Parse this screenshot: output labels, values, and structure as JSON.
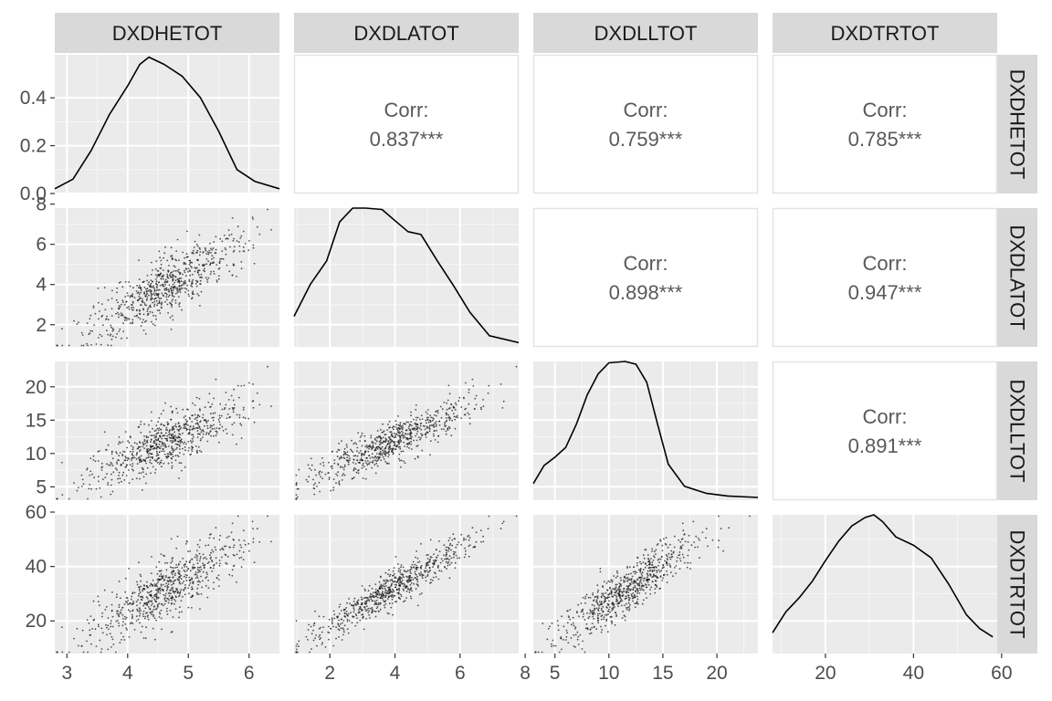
{
  "chart_data": {
    "type": "scatter-matrix",
    "variables": [
      "DXDHETOT",
      "DXDLATOT",
      "DXDLLTOT",
      "DXDTRTOT"
    ],
    "corr_label": "Corr:",
    "correlations": [
      {
        "row": "DXDHETOT",
        "col": "DXDLATOT",
        "text": "0.837***",
        "value": 0.837
      },
      {
        "row": "DXDHETOT",
        "col": "DXDLLTOT",
        "text": "0.759***",
        "value": 0.759
      },
      {
        "row": "DXDHETOT",
        "col": "DXDTRTOT",
        "text": "0.785***",
        "value": 0.785
      },
      {
        "row": "DXDLATOT",
        "col": "DXDLLTOT",
        "text": "0.898***",
        "value": 0.898
      },
      {
        "row": "DXDLATOT",
        "col": "DXDTRTOT",
        "text": "0.947***",
        "value": 0.947
      },
      {
        "row": "DXDLLTOT",
        "col": "DXDTRTOT",
        "text": "0.891***",
        "value": 0.891
      }
    ],
    "ranges": {
      "DXDHETOT": [
        2.8,
        6.5
      ],
      "DXDLATOT": [
        0.9,
        7.8
      ],
      "DXDLLTOT": [
        3.0,
        23.8
      ],
      "DXDTRTOT": [
        8.0,
        59.0
      ]
    },
    "x_ticks": {
      "DXDHETOT": [
        3,
        4,
        5,
        6
      ],
      "DXDLATOT": [
        2,
        4,
        6,
        8
      ],
      "DXDLLTOT": [
        5,
        10,
        15,
        20
      ],
      "DXDTRTOT": [
        20,
        40,
        60
      ]
    },
    "y_ticks": {
      "DXDHETOT": [
        "0.0",
        "0.2",
        "0.4"
      ],
      "DXDLATOT": [
        "2",
        "4",
        "6",
        "8"
      ],
      "DXDLLTOT": [
        "5",
        "10",
        "15",
        "20"
      ],
      "DXDTRTOT": [
        "20",
        "40",
        "60"
      ]
    },
    "density_row1_axis": {
      "range": [
        0,
        0.58
      ],
      "ticks": [
        0.0,
        0.2,
        0.4
      ]
    },
    "density_curves": {
      "DXDHETOT": [
        [
          2.8,
          0.02
        ],
        [
          3.1,
          0.06
        ],
        [
          3.4,
          0.18
        ],
        [
          3.7,
          0.33
        ],
        [
          4.0,
          0.45
        ],
        [
          4.2,
          0.54
        ],
        [
          4.35,
          0.57
        ],
        [
          4.6,
          0.54
        ],
        [
          4.9,
          0.49
        ],
        [
          5.2,
          0.4
        ],
        [
          5.5,
          0.26
        ],
        [
          5.8,
          0.1
        ],
        [
          6.1,
          0.05
        ],
        [
          6.5,
          0.02
        ]
      ],
      "DXDLATOT": [
        [
          0.9,
          0.22
        ],
        [
          1.4,
          0.45
        ],
        [
          1.9,
          0.62
        ],
        [
          2.3,
          0.9
        ],
        [
          2.7,
          1.0
        ],
        [
          3.1,
          1.0
        ],
        [
          3.6,
          0.99
        ],
        [
          4.0,
          0.91
        ],
        [
          4.4,
          0.83
        ],
        [
          4.8,
          0.81
        ],
        [
          5.3,
          0.62
        ],
        [
          5.8,
          0.44
        ],
        [
          6.3,
          0.25
        ],
        [
          6.9,
          0.08
        ],
        [
          7.8,
          0.03
        ]
      ],
      "DXDLLTOT": [
        [
          3.0,
          0.12
        ],
        [
          4.0,
          0.25
        ],
        [
          5.0,
          0.31
        ],
        [
          6.0,
          0.38
        ],
        [
          7.0,
          0.55
        ],
        [
          8.0,
          0.76
        ],
        [
          9.0,
          0.91
        ],
        [
          10.0,
          0.99
        ],
        [
          11.5,
          1.0
        ],
        [
          12.5,
          0.98
        ],
        [
          13.5,
          0.85
        ],
        [
          14.5,
          0.55
        ],
        [
          15.5,
          0.26
        ],
        [
          17.0,
          0.1
        ],
        [
          19.0,
          0.05
        ],
        [
          21.0,
          0.03
        ],
        [
          23.8,
          0.02
        ]
      ],
      "DXDTRTOT": [
        [
          8.0,
          0.15
        ],
        [
          11.0,
          0.3
        ],
        [
          14.0,
          0.4
        ],
        [
          17.0,
          0.52
        ],
        [
          20.0,
          0.67
        ],
        [
          23.0,
          0.81
        ],
        [
          26.0,
          0.92
        ],
        [
          29.0,
          0.98
        ],
        [
          31.0,
          1.0
        ],
        [
          33.0,
          0.95
        ],
        [
          36.0,
          0.84
        ],
        [
          40.0,
          0.78
        ],
        [
          44.0,
          0.69
        ],
        [
          48.0,
          0.5
        ],
        [
          52.0,
          0.28
        ],
        [
          55.0,
          0.18
        ],
        [
          58.0,
          0.12
        ]
      ]
    },
    "scatter_points_per_panel": 700,
    "grid": true,
    "legend": "none"
  }
}
